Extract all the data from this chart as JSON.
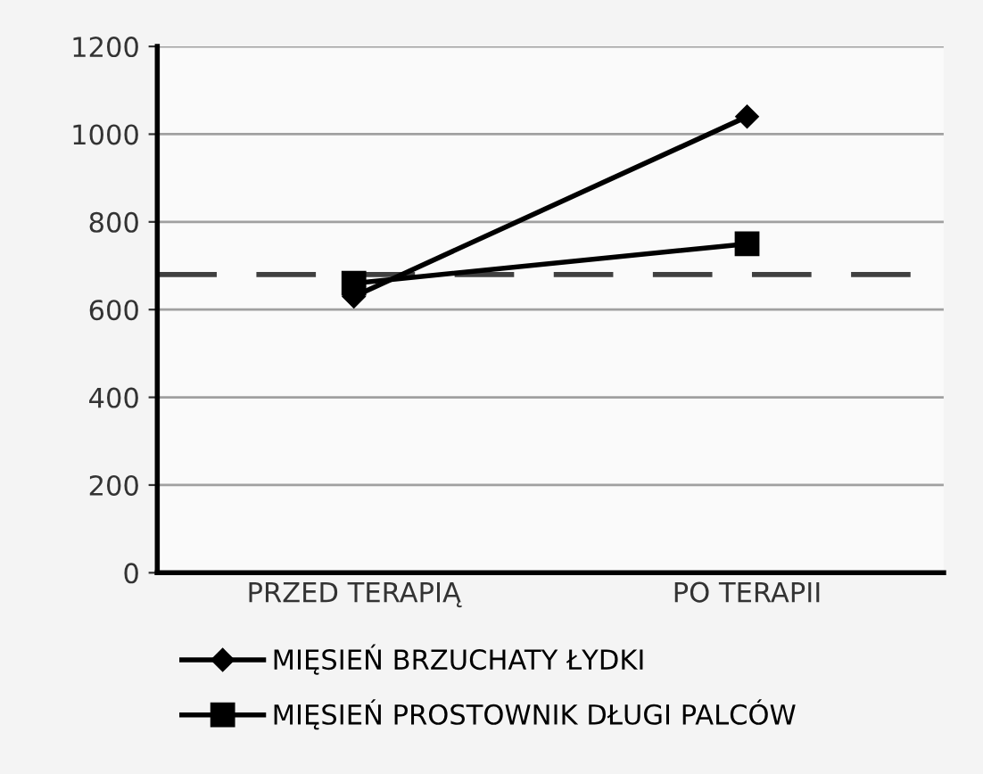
{
  "chart_data": {
    "type": "line",
    "categories": [
      "PRZED TERAPIĄ",
      "PO TERAPII"
    ],
    "series": [
      {
        "name": "MIĘSIEŃ BRZUCHATY ŁYDKI",
        "color": "#000000",
        "marker": "diamond",
        "values": [
          630,
          1040
        ]
      },
      {
        "name": "MIĘSIEŃ PROSTOWNIK DŁUGI PALCÓW",
        "color": "#000000",
        "marker": "square",
        "values": [
          660,
          750
        ]
      }
    ],
    "ylim": [
      0,
      1200
    ],
    "yticks": [
      0,
      200,
      400,
      600,
      800,
      1000,
      1200
    ],
    "grid": "y",
    "legend": "bottom",
    "ref_lines": [
      {
        "axis": "y",
        "value": 680,
        "color": "#404040",
        "line_style": "dashed"
      }
    ]
  }
}
